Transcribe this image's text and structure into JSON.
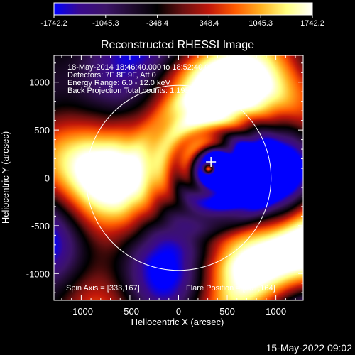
{
  "colors": {
    "background": "#000000",
    "foreground": "#ffffff",
    "colormap": [
      "#0000ff",
      "#3a0a8c",
      "#3c1468",
      "#200b30",
      "#000000",
      "#6b1010",
      "#c0170a",
      "#ff5a00",
      "#ffb020",
      "#ffff80",
      "#ffffff"
    ]
  },
  "colorbar": {
    "range": [
      -1742.2,
      1742.2
    ],
    "tick_labels": [
      "-1742.2",
      "-1045.3",
      "-348.4",
      "348.4",
      "1045.3",
      "1742.2"
    ]
  },
  "plot": {
    "title": "Reconstructed RHESSI Image",
    "xlabel": "Heliocentric X (arcsec)",
    "ylabel": "Heliocentric Y (arcsec)",
    "info_lines": [
      "18-May-2014 18:46:40.000 to 18:52:40.000",
      "Detectors: 7F 8F 9F, Att 0",
      "Energy Range: 6.0 - 12.0 keV",
      "Back Projection    Total counts: 1.19E+04"
    ],
    "spin_axis": "Spin Axis = [333,167]",
    "flare_position": "Flare Position = [561,164]",
    "footer_date": "15-May-2022 09:02"
  },
  "chart_data": {
    "type": "heatmap",
    "title": "Reconstructed RHESSI Image",
    "xlabel": "Heliocentric X (arcsec)",
    "ylabel": "Heliocentric Y (arcsec)",
    "xlim": [
      -1280,
      1280
    ],
    "ylim": [
      -1280,
      1280
    ],
    "x_ticks": [
      -1000,
      -500,
      0,
      500,
      1000
    ],
    "y_ticks": [
      -1000,
      -500,
      0,
      500,
      1000
    ],
    "x_tick_labels": [
      "-1000",
      "-500",
      "0",
      "500",
      "1000"
    ],
    "y_tick_labels": [
      "-1000",
      "-500",
      "0",
      "500",
      "1000"
    ],
    "value_range": [
      -1742.2,
      1742.2
    ],
    "solar_limb_radius_arcsec": 950,
    "spin_axis": [
      333,
      167
    ],
    "flare_position": [
      561,
      164
    ],
    "markers": [
      {
        "symbol": "cross",
        "x": 333,
        "y": 167
      }
    ]
  }
}
